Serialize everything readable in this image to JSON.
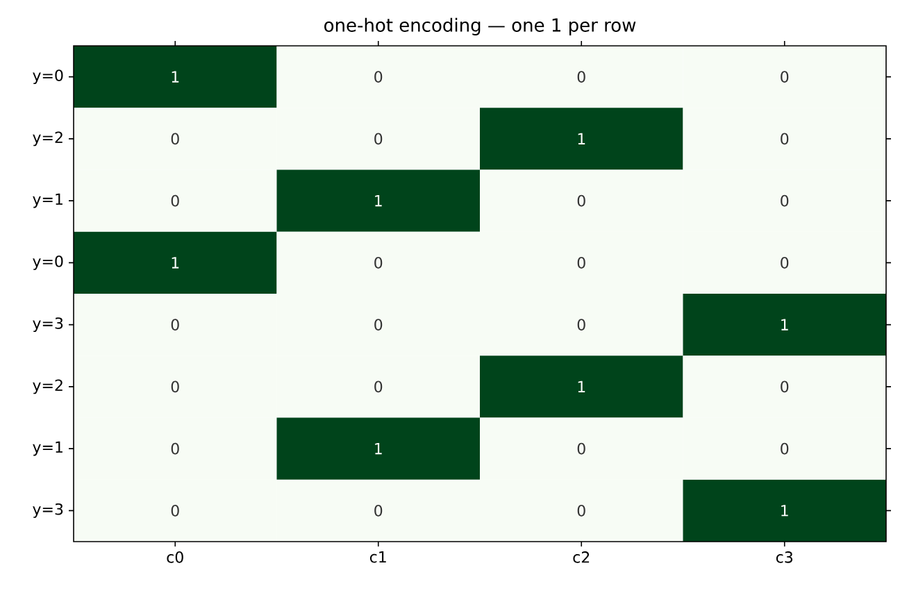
{
  "chart_data": {
    "type": "heatmap",
    "title": "one-hot encoding — one 1 per row",
    "categories": [
      "c0",
      "c1",
      "c2",
      "c3"
    ],
    "y_categories": [
      "y=0",
      "y=2",
      "y=1",
      "y=0",
      "y=3",
      "y=2",
      "y=1",
      "y=3"
    ],
    "cells": [
      [
        1,
        0,
        0,
        0
      ],
      [
        0,
        0,
        1,
        0
      ],
      [
        0,
        1,
        0,
        0
      ],
      [
        1,
        0,
        0,
        0
      ],
      [
        0,
        0,
        0,
        1
      ],
      [
        0,
        0,
        1,
        0
      ],
      [
        0,
        1,
        0,
        0
      ],
      [
        0,
        0,
        0,
        1
      ]
    ],
    "data_labels": true
  }
}
